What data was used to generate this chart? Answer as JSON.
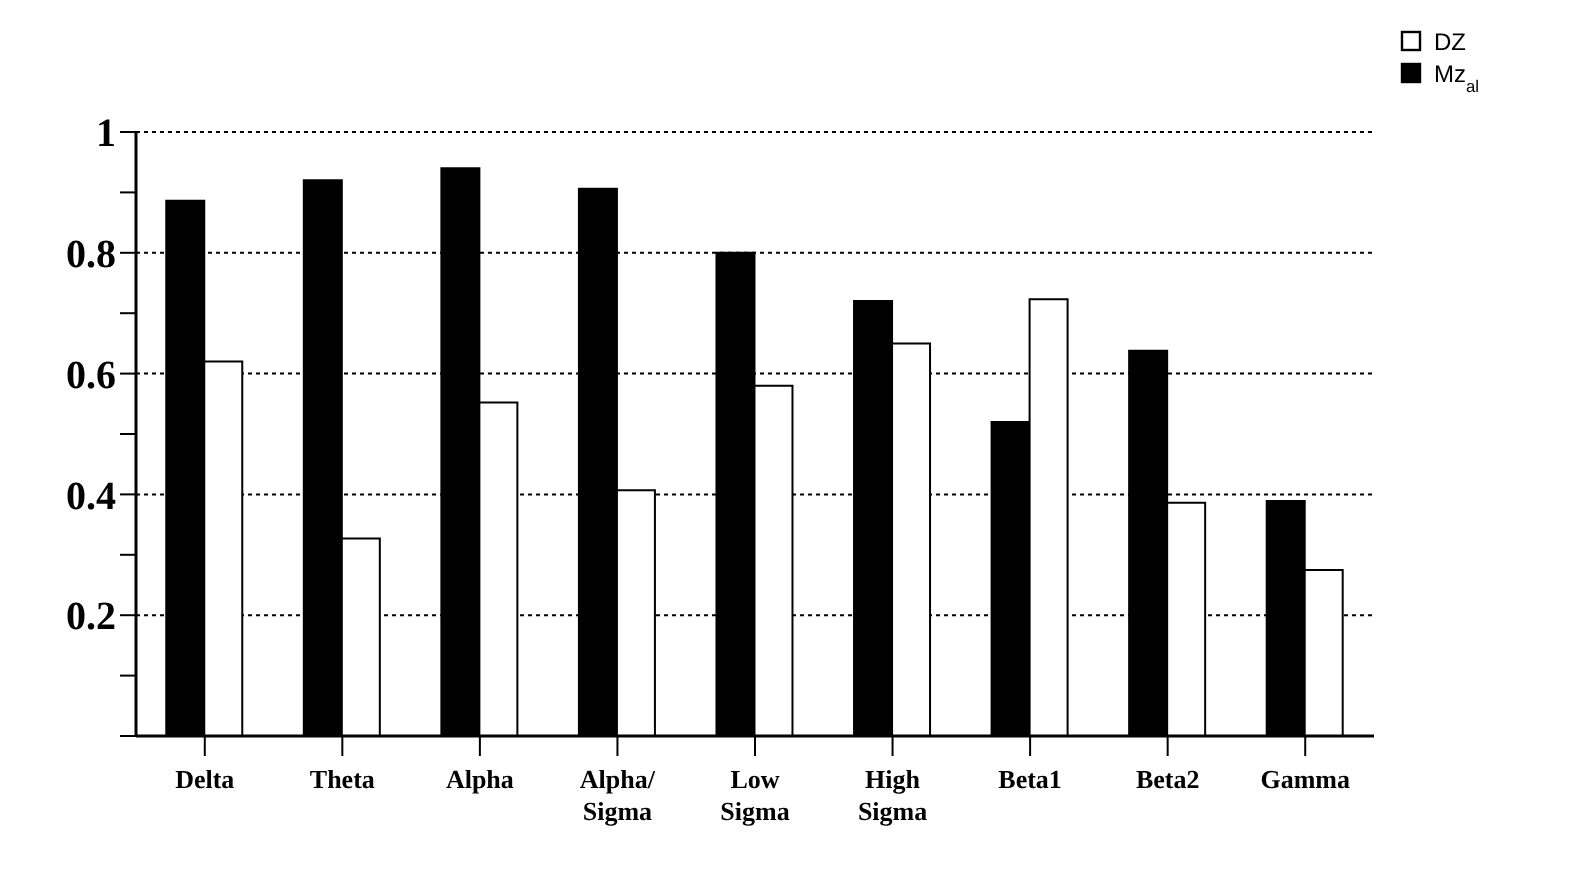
{
  "chart_data": {
    "type": "bar",
    "categories": [
      "Delta",
      "Theta",
      "Alpha",
      "Alpha/ Sigma",
      "Low Sigma",
      "High Sigma",
      "Beta1",
      "Beta2",
      "Gamma"
    ],
    "series": [
      {
        "name": "Mz$_{al}$",
        "color": "#000000",
        "values": [
          0.886,
          0.92,
          0.94,
          0.906,
          0.8,
          0.72,
          0.52,
          0.638,
          0.389
        ]
      },
      {
        "name": "DZ",
        "color": "#ffffff",
        "values": [
          0.62,
          0.327,
          0.552,
          0.407,
          0.58,
          0.65,
          0.723,
          0.386,
          0.275
        ]
      }
    ],
    "ylim": [
      0,
      1
    ],
    "yticks": [
      {
        "value": 0,
        "label": null
      },
      {
        "value": 0.1,
        "label": null
      },
      0.2,
      {
        "value": 0.3,
        "label": null
      },
      0.4,
      {
        "value": 0.5,
        "label": null
      },
      0.6,
      {
        "value": 0.7,
        "label": null
      },
      0.8,
      {
        "value": 0.9,
        "label": null
      },
      1
    ],
    "grid": "y",
    "legend": "top right"
  }
}
